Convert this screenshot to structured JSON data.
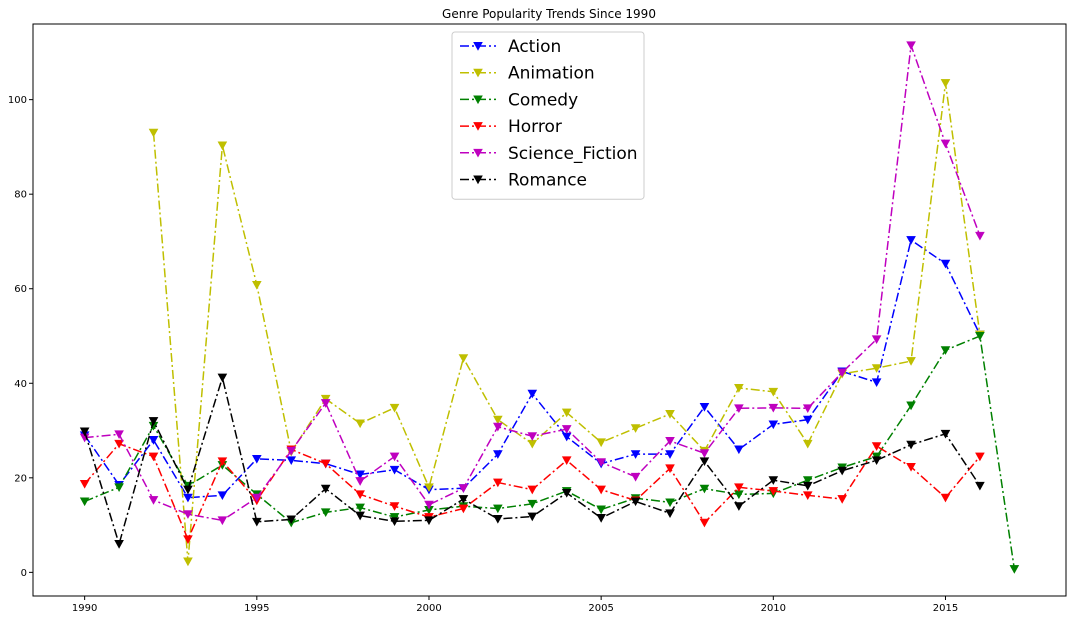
{
  "chart_data": {
    "type": "line",
    "title": "Genre Popularity Trends Since 1990",
    "xlabel": "",
    "ylabel": "",
    "xlim": [
      1988.5,
      2018.5
    ],
    "ylim": [
      -5,
      116
    ],
    "xticks": [
      1990,
      1995,
      2000,
      2005,
      2010,
      2015
    ],
    "yticks": [
      0,
      20,
      40,
      60,
      80,
      100
    ],
    "grid": false,
    "legend_position": "top-center",
    "series": [
      {
        "name": "Action",
        "color": "#0000ff",
        "x": [
          1990,
          1991,
          1992,
          1993,
          1994,
          1995,
          1996,
          1997,
          1998,
          1999,
          2000,
          2001,
          2002,
          2003,
          2004,
          2005,
          2006,
          2007,
          2008,
          2009,
          2010,
          2011,
          2012,
          2013,
          2014,
          2015,
          2016
        ],
        "values": [
          29,
          18.5,
          28,
          15.8,
          16.3,
          24,
          23.7,
          23,
          20.7,
          21.7,
          17.5,
          17.8,
          25,
          37.8,
          28.7,
          23,
          25,
          25,
          35,
          26,
          31.3,
          32.3,
          42.5,
          40.2,
          70.3,
          65.3,
          50.3
        ]
      },
      {
        "name": "Animation",
        "color": "#bfbf00",
        "x": [
          1992,
          1993,
          1994,
          1995,
          1996,
          1997,
          1998,
          1999,
          2000,
          2001,
          2002,
          2003,
          2004,
          2005,
          2006,
          2007,
          2008,
          2009,
          2010,
          2011,
          2012,
          2013,
          2014,
          2015,
          2016
        ],
        "values": [
          93,
          2.3,
          90.3,
          60.8,
          25.5,
          36.7,
          31.5,
          34.8,
          18,
          45.3,
          32.3,
          27.2,
          33.8,
          27.5,
          30.5,
          33.5,
          25.7,
          39,
          38.2,
          27.2,
          42,
          43.2,
          44.7,
          103.5,
          50.3
        ]
      },
      {
        "name": "Comedy",
        "color": "#008000",
        "x": [
          1990,
          1991,
          1992,
          1993,
          1994,
          1995,
          1996,
          1997,
          1998,
          1999,
          2000,
          2001,
          2002,
          2003,
          2004,
          2005,
          2006,
          2007,
          2008,
          2009,
          2010,
          2011,
          2012,
          2013,
          2014,
          2015,
          2016,
          2017
        ],
        "values": [
          15,
          18,
          31,
          18.3,
          22.7,
          16.5,
          10.5,
          12.7,
          13.7,
          11.7,
          13.2,
          14,
          13.5,
          14.5,
          17.2,
          13.3,
          15.7,
          14.8,
          17.7,
          16.5,
          16.7,
          19.5,
          22.2,
          24.5,
          35.3,
          47,
          50,
          0.7
        ]
      },
      {
        "name": "Horror",
        "color": "#ff0000",
        "x": [
          1990,
          1991,
          1992,
          1993,
          1994,
          1995,
          1996,
          1997,
          1998,
          1999,
          2000,
          2001,
          2002,
          2003,
          2004,
          2005,
          2006,
          2007,
          2008,
          2009,
          2010,
          2011,
          2012,
          2013,
          2014,
          2015,
          2016
        ],
        "values": [
          18.7,
          27.2,
          24.5,
          7,
          23.5,
          15.2,
          26,
          23,
          16.5,
          14,
          11.7,
          13.5,
          19,
          17.5,
          23.7,
          17.5,
          15.2,
          22,
          10.5,
          18,
          17.2,
          16.3,
          15.5,
          26.7,
          22.3,
          15.8,
          24.5
        ]
      },
      {
        "name": "Science_Fiction",
        "color": "#bf00bf",
        "x": [
          1990,
          1991,
          1992,
          1993,
          1994,
          1995,
          1996,
          1997,
          1998,
          1999,
          2000,
          2001,
          2002,
          2003,
          2004,
          2005,
          2006,
          2007,
          2008,
          2009,
          2010,
          2011,
          2012,
          2013,
          2014,
          2015,
          2016
        ],
        "values": [
          28.5,
          29.2,
          15.3,
          12.3,
          11,
          15.8,
          25.7,
          35.8,
          19.3,
          24.5,
          14.3,
          17.8,
          30.8,
          28.8,
          30.3,
          23.3,
          20.2,
          27.8,
          25.2,
          34.7,
          34.8,
          34.7,
          42.3,
          49.3,
          111.5,
          90.7,
          71.2
        ]
      },
      {
        "name": "Romance",
        "color": "#000000",
        "x": [
          1990,
          1991,
          1992,
          1993,
          1994,
          1995,
          1996,
          1997,
          1998,
          1999,
          2000,
          2001,
          2002,
          2003,
          2004,
          2005,
          2006,
          2007,
          2008,
          2009,
          2010,
          2011,
          2012,
          2013,
          2014,
          2015,
          2016
        ],
        "values": [
          29.8,
          6,
          32,
          17.5,
          41.2,
          10.7,
          11.2,
          17.7,
          12,
          10.8,
          11,
          15.5,
          11.3,
          11.8,
          16.8,
          11.5,
          15,
          12.5,
          23.5,
          14,
          19.5,
          18.3,
          21.5,
          23.7,
          27,
          29.3,
          18.3
        ]
      }
    ]
  }
}
